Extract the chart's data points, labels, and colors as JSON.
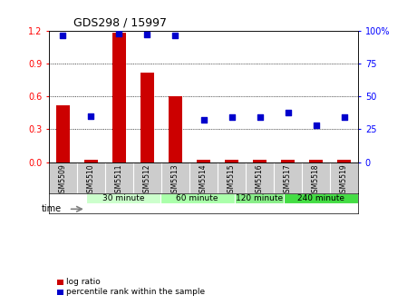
{
  "title": "GDS298 / 15997",
  "samples": [
    "GSM5509",
    "GSM5510",
    "GSM5511",
    "GSM5512",
    "GSM5513",
    "GSM5514",
    "GSM5515",
    "GSM5516",
    "GSM5517",
    "GSM5518",
    "GSM5519"
  ],
  "log_ratio": [
    0.52,
    0.02,
    1.18,
    0.82,
    0.6,
    0.02,
    0.02,
    0.02,
    0.02,
    0.02,
    0.02
  ],
  "percentile": [
    96,
    35,
    98,
    97,
    96,
    32,
    34,
    34,
    38,
    28,
    34
  ],
  "ylim_left": [
    0,
    1.2
  ],
  "ylim_right": [
    0,
    100
  ],
  "yticks_left": [
    0,
    0.3,
    0.6,
    0.9,
    1.2
  ],
  "yticks_right": [
    0,
    25,
    50,
    75,
    100
  ],
  "bar_color": "#cc0000",
  "scatter_color": "#0000cc",
  "groups": [
    {
      "label": "30 minute",
      "start": 0,
      "end": 2,
      "color": "#ccffcc"
    },
    {
      "label": "60 minute",
      "start": 3,
      "end": 5,
      "color": "#aaffaa"
    },
    {
      "label": "120 minute",
      "start": 6,
      "end": 7,
      "color": "#88ee88"
    },
    {
      "label": "240 minute",
      "start": 8,
      "end": 10,
      "color": "#44dd44"
    }
  ],
  "sample_bg_color": "#cccccc",
  "xlabel_time": "time",
  "legend_log": "log ratio",
  "legend_pct": "percentile rank within the sample"
}
